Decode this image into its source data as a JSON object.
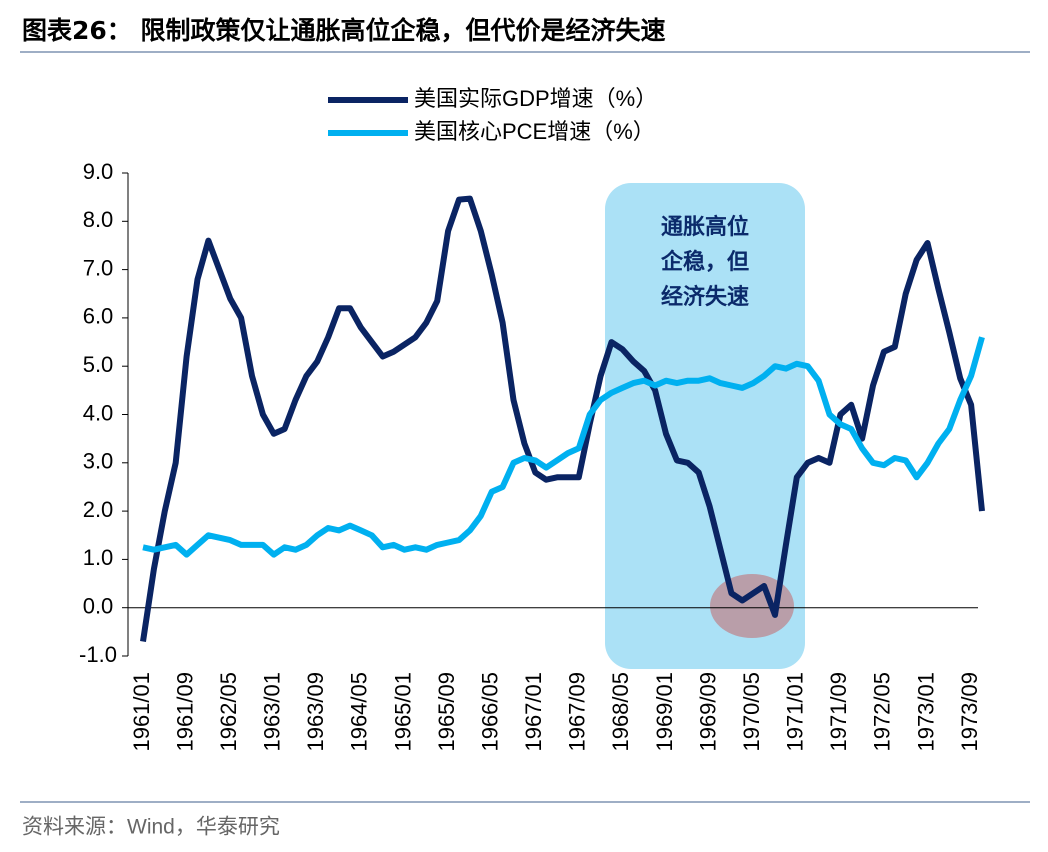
{
  "chart_data": {
    "type": "line",
    "title": "图表26： 限制政策仅让通胀高位企稳，但代价是经济失速",
    "source": "资料来源：Wind，华泰研究",
    "annotation": [
      "通胀高位",
      "企稳，但",
      "经济失速"
    ],
    "categories": [
      "1961/01",
      null,
      null,
      null,
      "1961/09",
      null,
      null,
      null,
      "1962/05",
      null,
      null,
      null,
      "1963/01",
      null,
      null,
      null,
      "1963/09",
      null,
      null,
      null,
      "1964/05",
      null,
      null,
      null,
      "1965/01",
      null,
      null,
      null,
      "1965/09",
      null,
      null,
      null,
      "1966/05",
      null,
      null,
      null,
      "1967/01",
      null,
      null,
      null,
      "1967/09",
      null,
      null,
      null,
      "1968/05",
      null,
      null,
      null,
      "1969/01",
      null,
      null,
      null,
      "1969/09",
      null,
      null,
      null,
      "1970/05",
      null,
      null,
      null,
      "1971/01",
      null,
      null,
      null,
      "1971/09",
      null,
      null,
      null,
      "1972/05",
      null,
      null,
      null,
      "1973/01",
      null,
      null,
      null,
      "1973/09",
      null
    ],
    "series": [
      {
        "name": "美国实际GDP增速（%）",
        "color": "#0a2463",
        "values": [
          -0.7,
          0.8,
          2.0,
          3.0,
          5.2,
          6.8,
          7.6,
          7.0,
          6.4,
          6.0,
          4.8,
          4.0,
          3.6,
          3.7,
          4.3,
          4.8,
          5.1,
          5.6,
          6.2,
          6.2,
          5.8,
          5.5,
          5.2,
          5.3,
          5.45,
          5.6,
          5.9,
          6.35,
          7.8,
          8.45,
          8.47,
          7.8,
          6.9,
          5.9,
          4.3,
          3.4,
          2.8,
          2.65,
          2.7,
          2.7,
          2.7,
          3.8,
          4.8,
          5.5,
          5.35,
          5.1,
          4.9,
          4.5,
          3.6,
          3.05,
          3.0,
          2.8,
          2.1,
          1.2,
          0.3,
          0.15,
          0.3,
          0.45,
          -0.15,
          1.3,
          2.7,
          3.0,
          3.1,
          3.0,
          4.0,
          4.2,
          3.5,
          4.6,
          5.3,
          5.4,
          6.5,
          7.2,
          7.55,
          6.6,
          5.7,
          4.75,
          4.2,
          2.0
        ]
      },
      {
        "name": "美国核心PCE增速（%）",
        "color": "#00b0f0",
        "values": [
          1.25,
          1.2,
          1.25,
          1.3,
          1.1,
          1.3,
          1.5,
          1.45,
          1.4,
          1.3,
          1.3,
          1.3,
          1.1,
          1.25,
          1.2,
          1.3,
          1.5,
          1.65,
          1.6,
          1.7,
          1.6,
          1.5,
          1.25,
          1.3,
          1.2,
          1.25,
          1.2,
          1.3,
          1.35,
          1.4,
          1.6,
          1.9,
          2.4,
          2.5,
          3.0,
          3.1,
          3.05,
          2.9,
          3.05,
          3.2,
          3.3,
          4.0,
          4.3,
          4.45,
          4.55,
          4.65,
          4.7,
          4.6,
          4.7,
          4.65,
          4.7,
          4.7,
          4.75,
          4.65,
          4.6,
          4.55,
          4.65,
          4.8,
          5.0,
          4.95,
          5.05,
          5.0,
          4.7,
          4.0,
          3.8,
          3.7,
          3.3,
          3.0,
          2.95,
          3.1,
          3.05,
          2.7,
          3.0,
          3.4,
          3.7,
          4.3,
          4.8,
          5.6
        ]
      }
    ],
    "ylim": [
      -1,
      9
    ],
    "yticks": [
      {
        "value": -1,
        "label": "-1.0"
      },
      {
        "value": 0,
        "label": "0.0"
      },
      {
        "value": 1,
        "label": "1.0"
      },
      {
        "value": 2,
        "label": "2.0"
      },
      {
        "value": 3,
        "label": "3.0"
      },
      {
        "value": 4,
        "label": "4.0"
      },
      {
        "value": 5,
        "label": "5.0"
      },
      {
        "value": 6,
        "label": "6.0"
      },
      {
        "value": 7,
        "label": "7.0"
      },
      {
        "value": 8,
        "label": "8.0"
      },
      {
        "value": 9,
        "label": "9.0"
      }
    ],
    "grid": false
  }
}
